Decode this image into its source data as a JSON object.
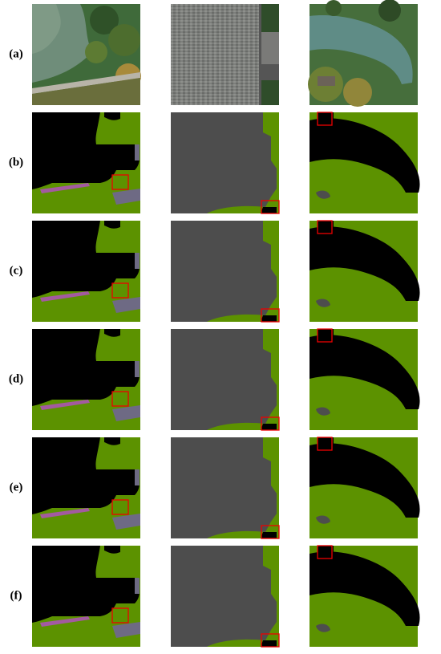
{
  "rows": [
    {
      "label": "(a)"
    },
    {
      "label": "(b)"
    },
    {
      "label": "(c)"
    },
    {
      "label": "(d)"
    },
    {
      "label": "(e)"
    },
    {
      "label": "(f)"
    }
  ]
}
